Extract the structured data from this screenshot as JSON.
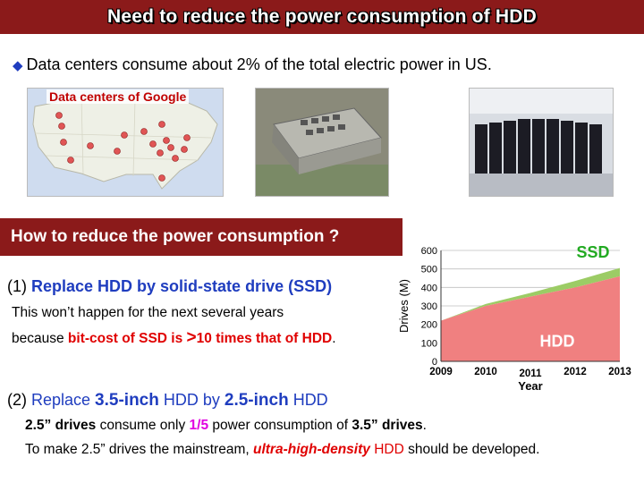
{
  "title": "Need to reduce the power consumption of HDD",
  "bullet": {
    "icon": "diamond-bullet-icon",
    "text": "Data centers consume about 2% of the total electric power in US."
  },
  "map_caption": "Data centers of Google",
  "section_heading": "How to reduce the power consumption ?",
  "item1": {
    "prefix": "(1) ",
    "heading": "Replace HDD by solid-state drive (SSD)",
    "line1": "This won’t happen for the next several years",
    "line2_a": "because ",
    "line2_b": "bit-cost of SSD is ",
    "line2_c": ">",
    "line2_d": "10 times that of HDD",
    "line2_e": "."
  },
  "item2": {
    "prefix": "(2) ",
    "a": "Replace ",
    "b": "3.5-inch",
    "c": " HDD by ",
    "d": "2.5-inch",
    "e": " HDD",
    "line1_a": "2.5” drives",
    "line1_b": " consume only ",
    "line1_c": "1/5",
    "line1_d": " power consumption of ",
    "line1_e": "3.5” drives",
    "line1_f": ".",
    "line2_a": "To make 2.5” drives the mainstream, ",
    "line2_b": "ultra-high-density",
    "line2_c": " HDD",
    "line2_d": " should be developed."
  },
  "colors": {
    "banner": "#8b1a1a",
    "blue_text": "#1f3dbf",
    "red_text": "#e00000",
    "hdd_fill": "#f08080",
    "ssd_fill": "#9ccc65"
  },
  "chart_data": {
    "type": "area",
    "x": [
      "2009",
      "2010",
      "2011",
      "2012",
      "2013"
    ],
    "x_numeric": [
      2009,
      2010,
      2011,
      2012,
      2013
    ],
    "xlabel": "Year",
    "ylabel": "Drives (M)",
    "ylim": [
      0,
      600
    ],
    "yticks": [
      0,
      100,
      200,
      300,
      400,
      500,
      600
    ],
    "grid": true,
    "series": [
      {
        "name": "HDD",
        "values": [
          220,
          300,
          350,
          400,
          460
        ],
        "color": "#f08080"
      },
      {
        "name": "SSD",
        "values": [
          0,
          10,
          20,
          35,
          45
        ],
        "color": "#9ccc65"
      }
    ],
    "labels": [
      {
        "text": "SSD",
        "color": "#22aa22"
      },
      {
        "text": "HDD",
        "color": "#ffffff"
      }
    ]
  }
}
